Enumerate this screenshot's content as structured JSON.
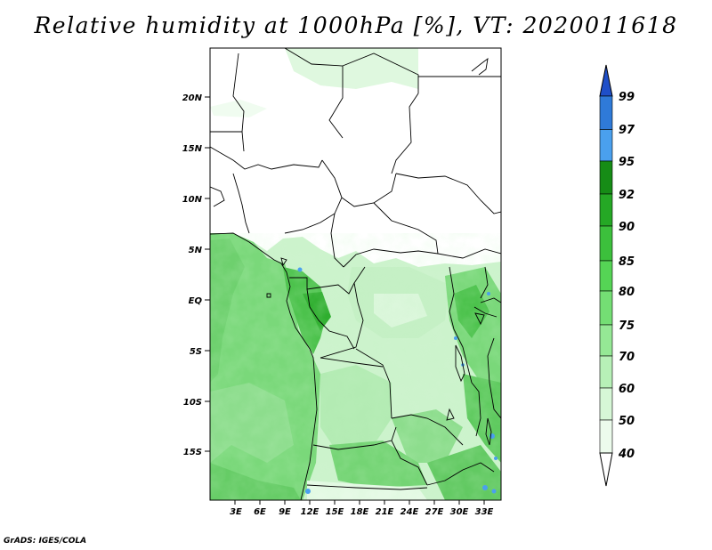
{
  "title": "Relative humidity at 1000hPa [%], VT: 2020011618",
  "footer": "GrADS: IGES/COLA",
  "axes": {
    "lat_ticks": [
      "20N",
      "15N",
      "10N",
      "5N",
      "EQ",
      "5S",
      "10S",
      "15S"
    ],
    "lon_ticks": [
      "3E",
      "6E",
      "9E",
      "12E",
      "15E",
      "18E",
      "21E",
      "24E",
      "27E",
      "30E",
      "33E"
    ]
  },
  "colorbar": {
    "labels": [
      "99",
      "97",
      "95",
      "92",
      "90",
      "85",
      "80",
      "75",
      "70",
      "60",
      "50",
      "40"
    ],
    "colors": [
      "#1f4fc8",
      "#2f7ad8",
      "#4aa0ee",
      "#168c16",
      "#25a825",
      "#3cc03c",
      "#55d455",
      "#74de74",
      "#95e895",
      "#b7f0b7",
      "#d6f7d6",
      "#ecfbec",
      "#ffffff"
    ]
  }
}
